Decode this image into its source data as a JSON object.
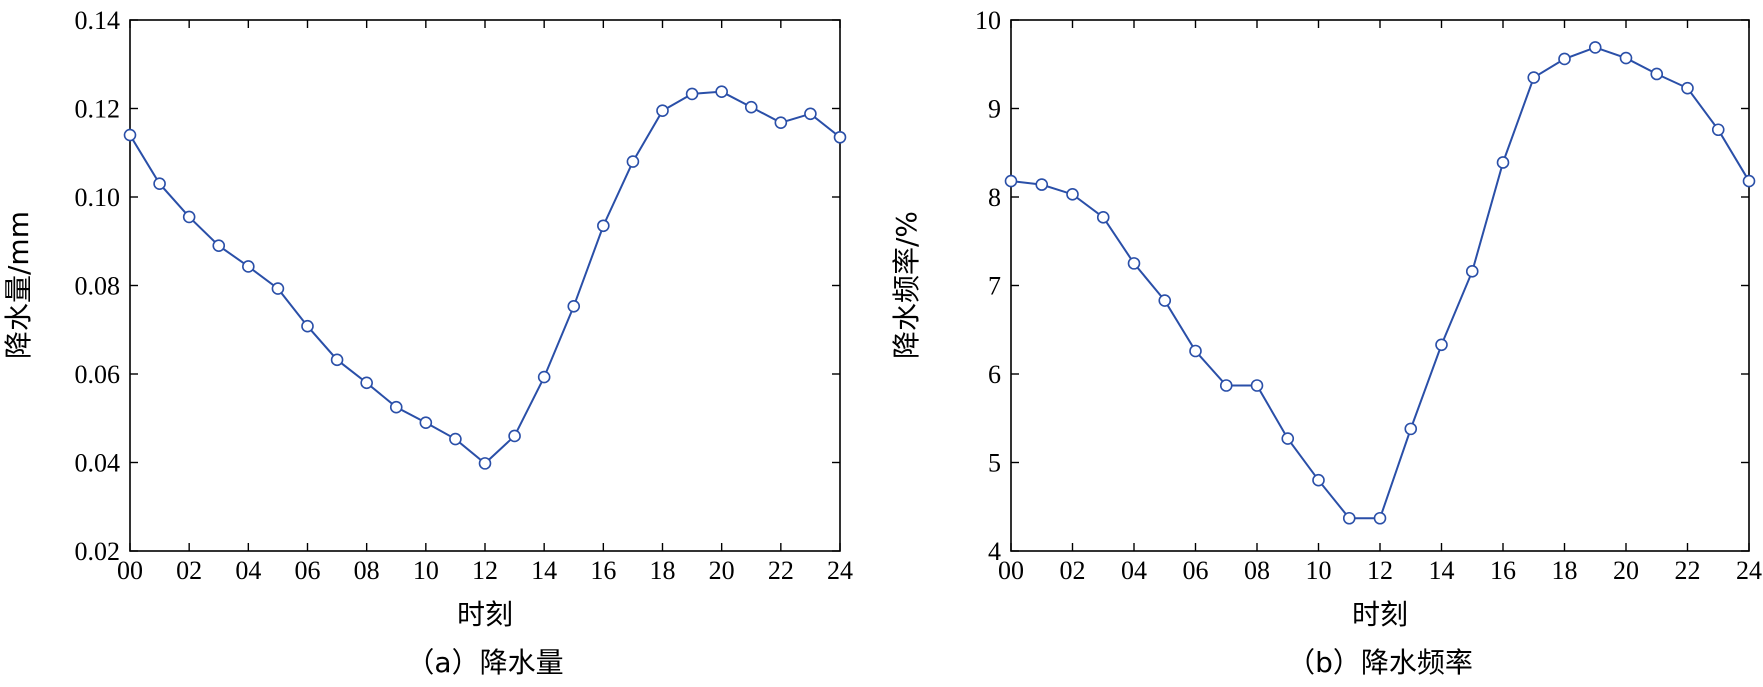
{
  "chart_data": [
    {
      "type": "line",
      "caption": "（a）降水量",
      "xlabel": "时刻",
      "ylabel": "降水量/mm",
      "x_tick_labels": [
        "00",
        "02",
        "04",
        "06",
        "08",
        "10",
        "12",
        "14",
        "16",
        "18",
        "20",
        "22",
        "24"
      ],
      "y_tick_labels": [
        "0.02",
        "0.04",
        "0.06",
        "0.08",
        "0.10",
        "0.12",
        "0.14"
      ],
      "xlim": [
        0,
        24
      ],
      "ylim": [
        0.02,
        0.14
      ],
      "grid": false,
      "color": "#2a4fa8",
      "marker": "open-circle",
      "x": [
        0,
        1,
        2,
        3,
        4,
        5,
        6,
        7,
        8,
        9,
        10,
        11,
        12,
        13,
        14,
        15,
        16,
        17,
        18,
        19,
        20,
        21,
        22,
        23,
        24
      ],
      "series": [
        {
          "values": [
            0.114,
            0.103,
            0.0955,
            0.089,
            0.0843,
            0.0793,
            0.0708,
            0.0632,
            0.058,
            0.0525,
            0.049,
            0.0453,
            0.0398,
            0.046,
            0.0593,
            0.0753,
            0.0935,
            0.108,
            0.1195,
            0.1233,
            0.1238,
            0.1203,
            0.1168,
            0.1188,
            0.1135
          ]
        }
      ]
    },
    {
      "type": "line",
      "caption": "（b）降水频率",
      "xlabel": "时刻",
      "ylabel": "降水频率/%",
      "x_tick_labels": [
        "00",
        "02",
        "04",
        "06",
        "08",
        "10",
        "12",
        "14",
        "16",
        "18",
        "20",
        "22",
        "24"
      ],
      "y_tick_labels": [
        "4",
        "5",
        "6",
        "7",
        "8",
        "9",
        "10"
      ],
      "xlim": [
        0,
        24
      ],
      "ylim": [
        4,
        10
      ],
      "grid": false,
      "color": "#2a4fa8",
      "marker": "open-circle",
      "x": [
        0,
        1,
        2,
        3,
        4,
        5,
        6,
        7,
        8,
        9,
        10,
        11,
        12,
        13,
        14,
        15,
        16,
        17,
        18,
        19,
        20,
        21,
        22,
        23,
        24
      ],
      "series": [
        {
          "values": [
            8.18,
            8.14,
            8.03,
            7.77,
            7.25,
            6.83,
            6.26,
            5.87,
            5.87,
            5.27,
            4.8,
            4.37,
            4.37,
            5.38,
            6.33,
            7.16,
            8.39,
            9.35,
            9.56,
            9.69,
            9.57,
            9.39,
            9.23,
            8.76,
            8.18
          ]
        }
      ]
    }
  ]
}
